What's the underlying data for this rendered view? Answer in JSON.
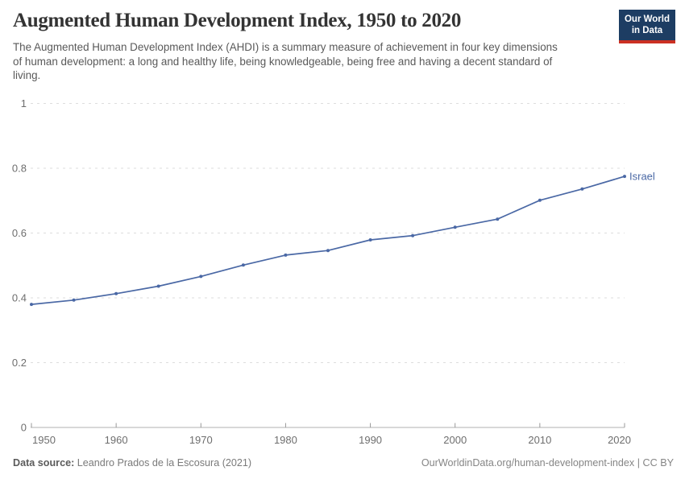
{
  "header": {
    "title": "Augmented Human Development Index, 1950 to 2020",
    "subtitle": "The Augmented Human Development Index (AHDI) is a summary measure of achievement in four key dimensions of human development: a long and healthy life, being knowledgeable, being free and having a decent standard of living."
  },
  "logo": {
    "line1": "Our World",
    "line2": "in Data",
    "bg_color": "#1d3d63",
    "bar_color": "#cb3023"
  },
  "chart_data": {
    "type": "line",
    "title": "Augmented Human Development Index, 1950 to 2020",
    "x": [
      1950,
      1955,
      1960,
      1965,
      1970,
      1975,
      1980,
      1985,
      1990,
      1995,
      2000,
      2005,
      2010,
      2015,
      2020
    ],
    "series": [
      {
        "name": "Israel",
        "color": "#4a68a5",
        "values": [
          0.38,
          0.393,
          0.413,
          0.436,
          0.466,
          0.501,
          0.532,
          0.546,
          0.579,
          0.592,
          0.618,
          0.643,
          0.701,
          0.736,
          0.775
        ]
      }
    ],
    "xlabel": "",
    "ylabel": "",
    "xlim": [
      1950,
      2020
    ],
    "ylim": [
      0,
      1
    ],
    "xticks": [
      1950,
      1960,
      1970,
      1980,
      1990,
      2000,
      2010,
      2020
    ],
    "yticks": [
      0,
      0.2,
      0.4,
      0.6,
      0.8,
      1
    ],
    "grid": "horizontal-dashed",
    "legend": "end-of-line-label",
    "colors": {
      "grid": "#dddddd",
      "axis": "#b0b0b0",
      "tick": "#999999",
      "tick_label": "#6e6e6e"
    }
  },
  "footer": {
    "source_label": "Data source:",
    "source_text": " Leandro Prados de la Escosura (2021)",
    "credit": "OurWorldinData.org/human-development-index | CC BY"
  }
}
